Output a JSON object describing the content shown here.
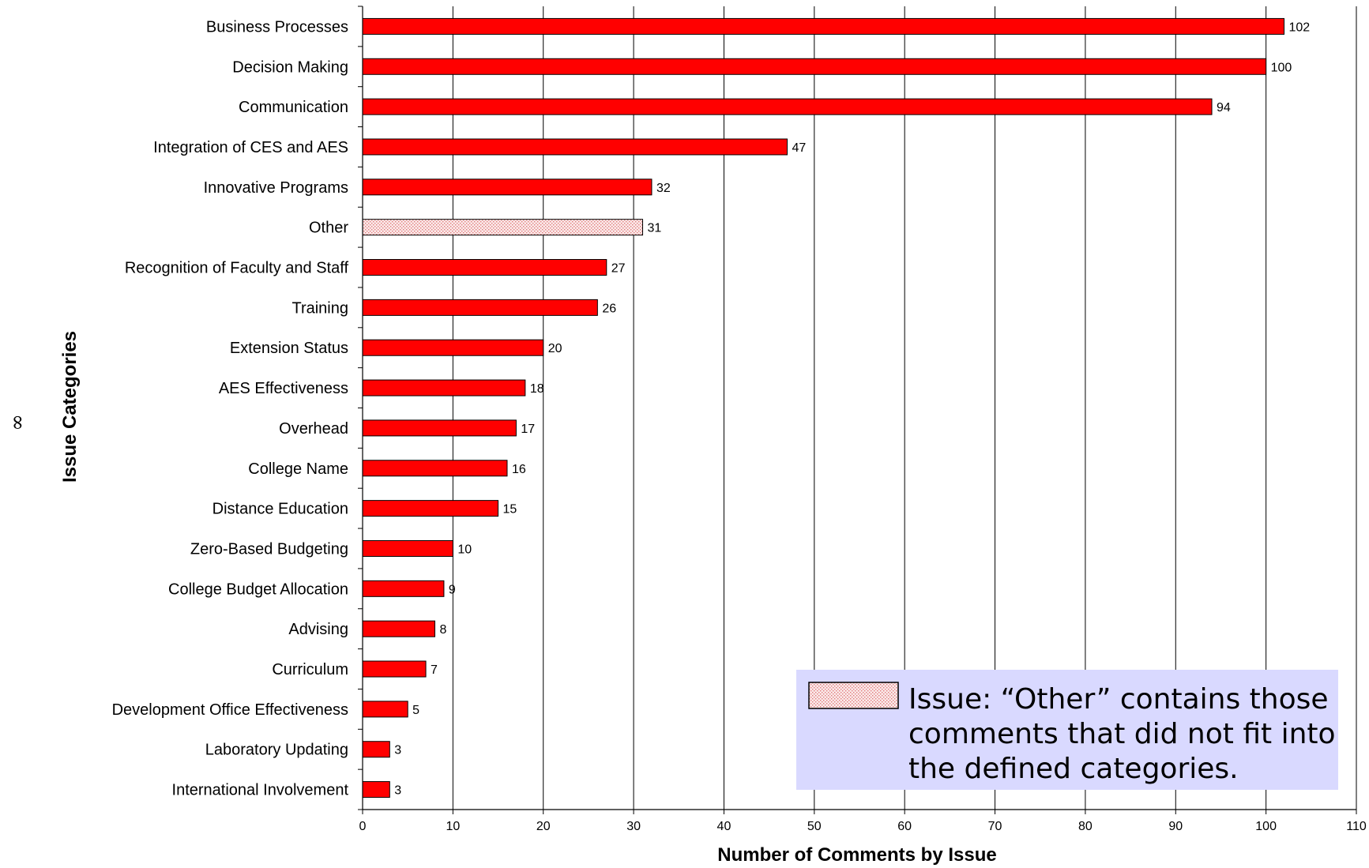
{
  "chart_data": {
    "type": "bar",
    "orientation": "horizontal",
    "categories": [
      "Business Processes",
      "Decision Making",
      "Communication",
      "Integration of CES and AES",
      "Innovative Programs",
      "Other",
      "Recognition of Faculty and Staff",
      "Training",
      "Extension Status",
      "AES Effectiveness",
      "Overhead",
      "College Name",
      "Distance Education",
      "Zero-Based Budgeting",
      "College Budget Allocation",
      "Advising",
      "Curriculum",
      "Development Office Effectiveness",
      "Laboratory Updating",
      "International Involvement"
    ],
    "values": [
      102,
      100,
      94,
      47,
      32,
      31,
      27,
      26,
      20,
      18,
      17,
      16,
      15,
      10,
      9,
      8,
      7,
      5,
      3,
      3
    ],
    "highlight_category": "Other",
    "xlabel": "Number of Comments by Issue",
    "ylabel": "Issue Categories",
    "xlim": [
      0,
      110
    ],
    "xticks": [
      0,
      10,
      20,
      30,
      40,
      50,
      60,
      70,
      80,
      90,
      100,
      110
    ],
    "grid": "vertical",
    "bar_color": "#ff0000",
    "highlight_color": "#f7d8d8",
    "side_mark": "∞",
    "legend": {
      "placement": "bottom-right",
      "background": "#d9d9ff",
      "lines": [
        "Issue: “Other” contains those",
        "comments that did not fit into",
        "the defined categories."
      ]
    }
  }
}
